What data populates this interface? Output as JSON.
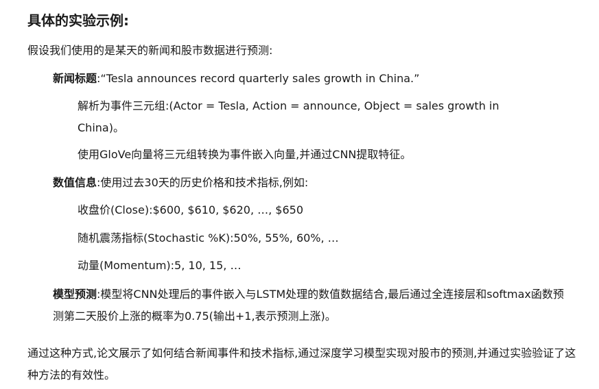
{
  "heading": "具体的实验示例:",
  "intro": "假设我们使用的是某天的新闻和股市数据进行预测:",
  "news": {
    "label": "新闻标题",
    "text": ":“Tesla announces record quarterly sales growth in China.”",
    "parse_line": "解析为事件三元组:(Actor = Tesla, Action = announce, Object = sales growth in China)。",
    "glove_line": "使用GloVe向量将三元组转换为事件嵌入向量,并通过CNN提取特征。"
  },
  "numeric": {
    "label": "数值信息",
    "text": ":使用过去30天的历史价格和技术指标,例如:",
    "close_line": "收盘价(Close):$600, $610, $620, …, $650",
    "stoch_line": "随机震荡指标(Stochastic %K):50%, 55%, 60%, …",
    "momentum_line": "动量(Momentum):5, 10, 15, …"
  },
  "model": {
    "label": "模型预测",
    "text": ":模型将CNN处理后的事件嵌入与LSTM处理的数值数据结合,最后通过全连接层和softmax函数预测第二天股价上涨的概率为0.75(输出+1,表示预测上涨)。"
  },
  "conclusion": "通过这种方式,论文展示了如何结合新闻事件和技术指标,通过深度学习模型实现对股市的预测,并通过实验验证了这种方法的有效性。"
}
